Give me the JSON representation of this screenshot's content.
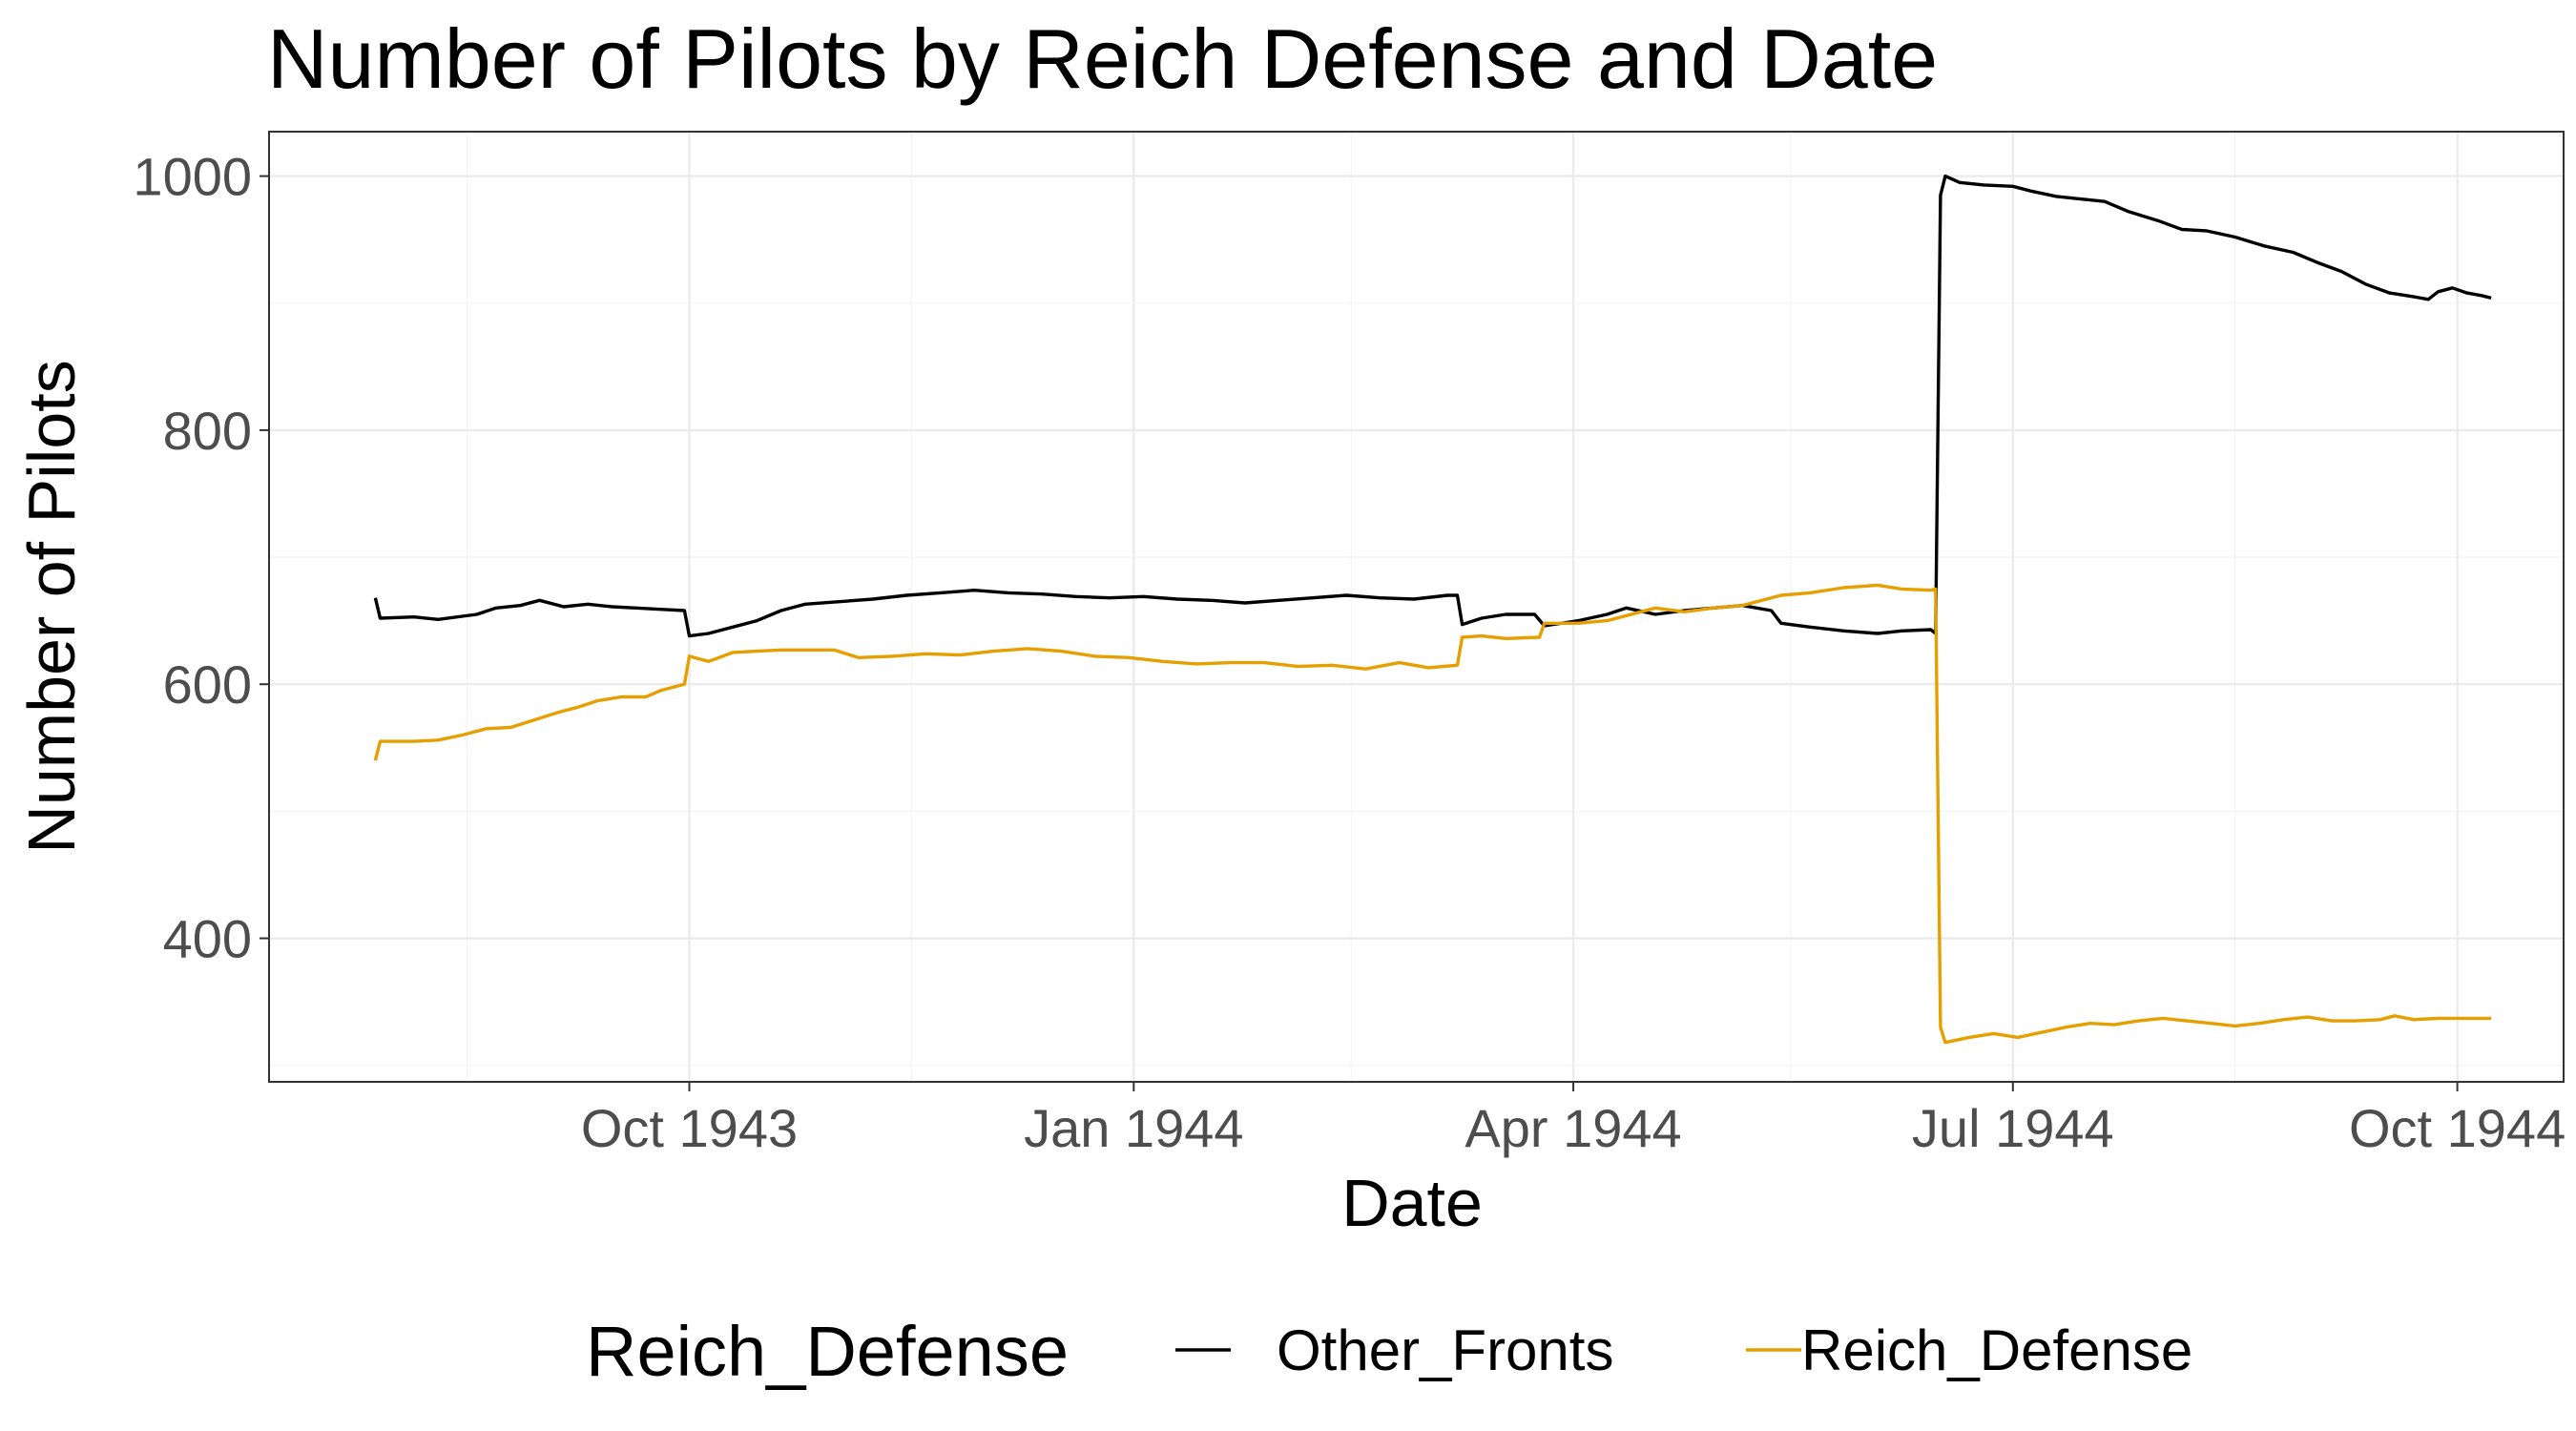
{
  "chart_data": {
    "type": "line",
    "title": "Number of Pilots by Reich Defense and Date",
    "xlabel": "Date",
    "ylabel": "Number of Pilots",
    "x_ticks": [
      {
        "date": "1943-10-01",
        "label": "Oct 1943"
      },
      {
        "date": "1944-01-01",
        "label": "Jan 1944"
      },
      {
        "date": "1944-04-01",
        "label": "Apr 1944"
      },
      {
        "date": "1944-07-01",
        "label": "Jul 1944"
      },
      {
        "date": "1944-10-01",
        "label": "Oct 1944"
      }
    ],
    "x_minor_ticks": [
      "1943-08-16",
      "1943-11-16",
      "1944-02-15",
      "1944-05-16",
      "1944-08-16"
    ],
    "xlim": [
      "1943-07-06",
      "1944-10-23"
    ],
    "y_ticks": [
      400,
      600,
      800,
      1000
    ],
    "y_minor_ticks": [
      300,
      500,
      700,
      900
    ],
    "ylim": [
      287,
      1035
    ],
    "grid": true,
    "legend": {
      "title": "Reich_Defense",
      "position": "bottom",
      "entries": [
        {
          "name": "Other_Fronts",
          "color": "#000000"
        },
        {
          "name": "Reich_Defense",
          "color": "#E69F00"
        }
      ]
    },
    "series": [
      {
        "name": "Other_Fronts",
        "color": "#000000",
        "points": [
          [
            "1943-07-28",
            668
          ],
          [
            "1943-07-29",
            652
          ],
          [
            "1943-08-05",
            653
          ],
          [
            "1943-08-10",
            651
          ],
          [
            "1943-08-18",
            655
          ],
          [
            "1943-08-22",
            660
          ],
          [
            "1943-08-27",
            662
          ],
          [
            "1943-08-31",
            666
          ],
          [
            "1943-09-05",
            661
          ],
          [
            "1943-09-10",
            663
          ],
          [
            "1943-09-15",
            661
          ],
          [
            "1943-09-20",
            660
          ],
          [
            "1943-09-25",
            659
          ],
          [
            "1943-09-30",
            658
          ],
          [
            "1943-10-01",
            638
          ],
          [
            "1943-10-05",
            640
          ],
          [
            "1943-10-10",
            645
          ],
          [
            "1943-10-15",
            650
          ],
          [
            "1943-10-20",
            658
          ],
          [
            "1943-10-25",
            663
          ],
          [
            "1943-11-01",
            665
          ],
          [
            "1943-11-08",
            667
          ],
          [
            "1943-11-15",
            670
          ],
          [
            "1943-11-22",
            672
          ],
          [
            "1943-11-29",
            674
          ],
          [
            "1943-12-06",
            672
          ],
          [
            "1943-12-13",
            671
          ],
          [
            "1943-12-20",
            669
          ],
          [
            "1943-12-27",
            668
          ],
          [
            "1944-01-03",
            669
          ],
          [
            "1944-01-10",
            667
          ],
          [
            "1944-01-17",
            666
          ],
          [
            "1944-01-24",
            664
          ],
          [
            "1944-01-31",
            666
          ],
          [
            "1944-02-07",
            668
          ],
          [
            "1944-02-14",
            670
          ],
          [
            "1944-02-21",
            668
          ],
          [
            "1944-02-28",
            667
          ],
          [
            "1944-03-06",
            670
          ],
          [
            "1944-03-08",
            670
          ],
          [
            "1944-03-09",
            647
          ],
          [
            "1944-03-13",
            652
          ],
          [
            "1944-03-18",
            655
          ],
          [
            "1944-03-24",
            655
          ],
          [
            "1944-03-26",
            646
          ],
          [
            "1944-04-02",
            650
          ],
          [
            "1944-04-08",
            655
          ],
          [
            "1944-04-12",
            660
          ],
          [
            "1944-04-18",
            655
          ],
          [
            "1944-04-24",
            658
          ],
          [
            "1944-04-30",
            660
          ],
          [
            "1944-05-06",
            662
          ],
          [
            "1944-05-12",
            658
          ],
          [
            "1944-05-14",
            648
          ],
          [
            "1944-05-20",
            645
          ],
          [
            "1944-05-27",
            642
          ],
          [
            "1944-06-03",
            640
          ],
          [
            "1944-06-08",
            642
          ],
          [
            "1944-06-14",
            643
          ],
          [
            "1944-06-15",
            640
          ],
          [
            "1944-06-16",
            985
          ],
          [
            "1944-06-17",
            1000
          ],
          [
            "1944-06-20",
            995
          ],
          [
            "1944-06-25",
            993
          ],
          [
            "1944-07-01",
            992
          ],
          [
            "1944-07-05",
            988
          ],
          [
            "1944-07-10",
            984
          ],
          [
            "1944-07-15",
            982
          ],
          [
            "1944-07-20",
            980
          ],
          [
            "1944-07-25",
            972
          ],
          [
            "1944-07-31",
            965
          ],
          [
            "1944-08-05",
            958
          ],
          [
            "1944-08-10",
            957
          ],
          [
            "1944-08-16",
            952
          ],
          [
            "1944-08-22",
            945
          ],
          [
            "1944-08-28",
            940
          ],
          [
            "1944-09-02",
            932
          ],
          [
            "1944-09-07",
            925
          ],
          [
            "1944-09-12",
            915
          ],
          [
            "1944-09-17",
            908
          ],
          [
            "1944-09-22",
            905
          ],
          [
            "1944-09-25",
            903
          ],
          [
            "1944-09-27",
            909
          ],
          [
            "1944-09-30",
            912
          ],
          [
            "1944-10-03",
            908
          ],
          [
            "1944-10-06",
            906
          ],
          [
            "1944-10-08",
            904
          ]
        ]
      },
      {
        "name": "Reich_Defense",
        "color": "#E69F00",
        "points": [
          [
            "1943-07-28",
            540
          ],
          [
            "1943-07-29",
            555
          ],
          [
            "1943-08-05",
            555
          ],
          [
            "1943-08-10",
            556
          ],
          [
            "1943-08-15",
            560
          ],
          [
            "1943-08-20",
            565
          ],
          [
            "1943-08-25",
            566
          ],
          [
            "1943-08-30",
            572
          ],
          [
            "1943-09-04",
            578
          ],
          [
            "1943-09-08",
            582
          ],
          [
            "1943-09-12",
            587
          ],
          [
            "1943-09-17",
            590
          ],
          [
            "1943-09-22",
            590
          ],
          [
            "1943-09-25",
            595
          ],
          [
            "1943-09-30",
            600
          ],
          [
            "1943-10-01",
            622
          ],
          [
            "1943-10-05",
            618
          ],
          [
            "1943-10-10",
            625
          ],
          [
            "1943-10-15",
            626
          ],
          [
            "1943-10-20",
            627
          ],
          [
            "1943-10-31",
            627
          ],
          [
            "1943-11-05",
            621
          ],
          [
            "1943-11-12",
            622
          ],
          [
            "1943-11-19",
            624
          ],
          [
            "1943-11-26",
            623
          ],
          [
            "1943-12-03",
            626
          ],
          [
            "1943-12-10",
            628
          ],
          [
            "1943-12-17",
            626
          ],
          [
            "1943-12-24",
            622
          ],
          [
            "1943-12-31",
            621
          ],
          [
            "1944-01-07",
            618
          ],
          [
            "1944-01-14",
            616
          ],
          [
            "1944-01-21",
            617
          ],
          [
            "1944-01-28",
            617
          ],
          [
            "1944-02-04",
            614
          ],
          [
            "1944-02-11",
            615
          ],
          [
            "1944-02-18",
            612
          ],
          [
            "1944-02-25",
            617
          ],
          [
            "1944-03-02",
            613
          ],
          [
            "1944-03-08",
            615
          ],
          [
            "1944-03-09",
            637
          ],
          [
            "1944-03-13",
            638
          ],
          [
            "1944-03-18",
            636
          ],
          [
            "1944-03-25",
            637
          ],
          [
            "1944-03-26",
            648
          ],
          [
            "1944-04-02",
            648
          ],
          [
            "1944-04-08",
            650
          ],
          [
            "1944-04-12",
            654
          ],
          [
            "1944-04-18",
            660
          ],
          [
            "1944-04-24",
            657
          ],
          [
            "1944-04-30",
            660
          ],
          [
            "1944-05-06",
            662
          ],
          [
            "1944-05-14",
            670
          ],
          [
            "1944-05-20",
            672
          ],
          [
            "1944-05-27",
            676
          ],
          [
            "1944-06-03",
            678
          ],
          [
            "1944-06-08",
            675
          ],
          [
            "1944-06-14",
            674
          ],
          [
            "1944-06-15",
            675
          ],
          [
            "1944-06-16",
            330
          ],
          [
            "1944-06-17",
            318
          ],
          [
            "1944-06-22",
            322
          ],
          [
            "1944-06-27",
            325
          ],
          [
            "1944-07-02",
            322
          ],
          [
            "1944-07-07",
            326
          ],
          [
            "1944-07-12",
            330
          ],
          [
            "1944-07-17",
            333
          ],
          [
            "1944-07-22",
            332
          ],
          [
            "1944-07-27",
            335
          ],
          [
            "1944-08-01",
            337
          ],
          [
            "1944-08-06",
            335
          ],
          [
            "1944-08-11",
            333
          ],
          [
            "1944-08-16",
            331
          ],
          [
            "1944-08-21",
            333
          ],
          [
            "1944-08-26",
            336
          ],
          [
            "1944-08-31",
            338
          ],
          [
            "1944-09-05",
            335
          ],
          [
            "1944-09-10",
            335
          ],
          [
            "1944-09-15",
            336
          ],
          [
            "1944-09-18",
            339
          ],
          [
            "1944-09-22",
            336
          ],
          [
            "1944-09-27",
            337
          ],
          [
            "1944-10-02",
            337
          ],
          [
            "1944-10-08",
            337
          ]
        ]
      }
    ]
  }
}
